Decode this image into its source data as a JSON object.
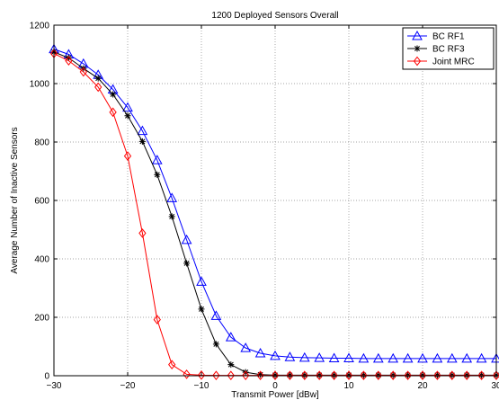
{
  "chart_data": {
    "type": "line",
    "title": "1200 Deployed Sensors Overall",
    "xlabel": "Transmit Power [dBw]",
    "ylabel": "Average Number of Inactive Sensors",
    "xlim": [
      -30,
      30
    ],
    "ylim": [
      0,
      1200
    ],
    "xticks": [
      -30,
      -20,
      -10,
      0,
      10,
      20,
      30
    ],
    "yticks": [
      0,
      200,
      400,
      600,
      800,
      1000,
      1200
    ],
    "grid": true,
    "legend_position": "top-right",
    "x": [
      -30,
      -28,
      -26,
      -24,
      -22,
      -20,
      -18,
      -16,
      -14,
      -12,
      -10,
      -8,
      -6,
      -4,
      -2,
      0,
      2,
      4,
      6,
      8,
      10,
      12,
      14,
      16,
      18,
      20,
      22,
      24,
      26,
      28,
      30
    ],
    "series": [
      {
        "name": "BC RF1",
        "color": "#0000ff",
        "marker": "triangle",
        "values": [
          1118,
          1100,
          1068,
          1030,
          980,
          918,
          838,
          738,
          608,
          465,
          322,
          205,
          132,
          95,
          77,
          68,
          64,
          62,
          61,
          60,
          60,
          59,
          59,
          59,
          59,
          59,
          59,
          59,
          59,
          59,
          59
        ]
      },
      {
        "name": "BC RF3",
        "color": "#000000",
        "marker": "star",
        "values": [
          1108,
          1088,
          1052,
          1018,
          963,
          890,
          802,
          688,
          545,
          385,
          228,
          108,
          38,
          12,
          4,
          2,
          2,
          2,
          2,
          2,
          2,
          2,
          2,
          2,
          2,
          2,
          2,
          2,
          2,
          2,
          2
        ]
      },
      {
        "name": "Joint MRC",
        "color": "#ff0000",
        "marker": "diamond",
        "values": [
          1103,
          1078,
          1040,
          988,
          902,
          752,
          488,
          192,
          38,
          5,
          2,
          1,
          1,
          1,
          1,
          1,
          1,
          1,
          1,
          1,
          1,
          1,
          1,
          1,
          1,
          1,
          1,
          1,
          1,
          1,
          1
        ]
      }
    ]
  }
}
